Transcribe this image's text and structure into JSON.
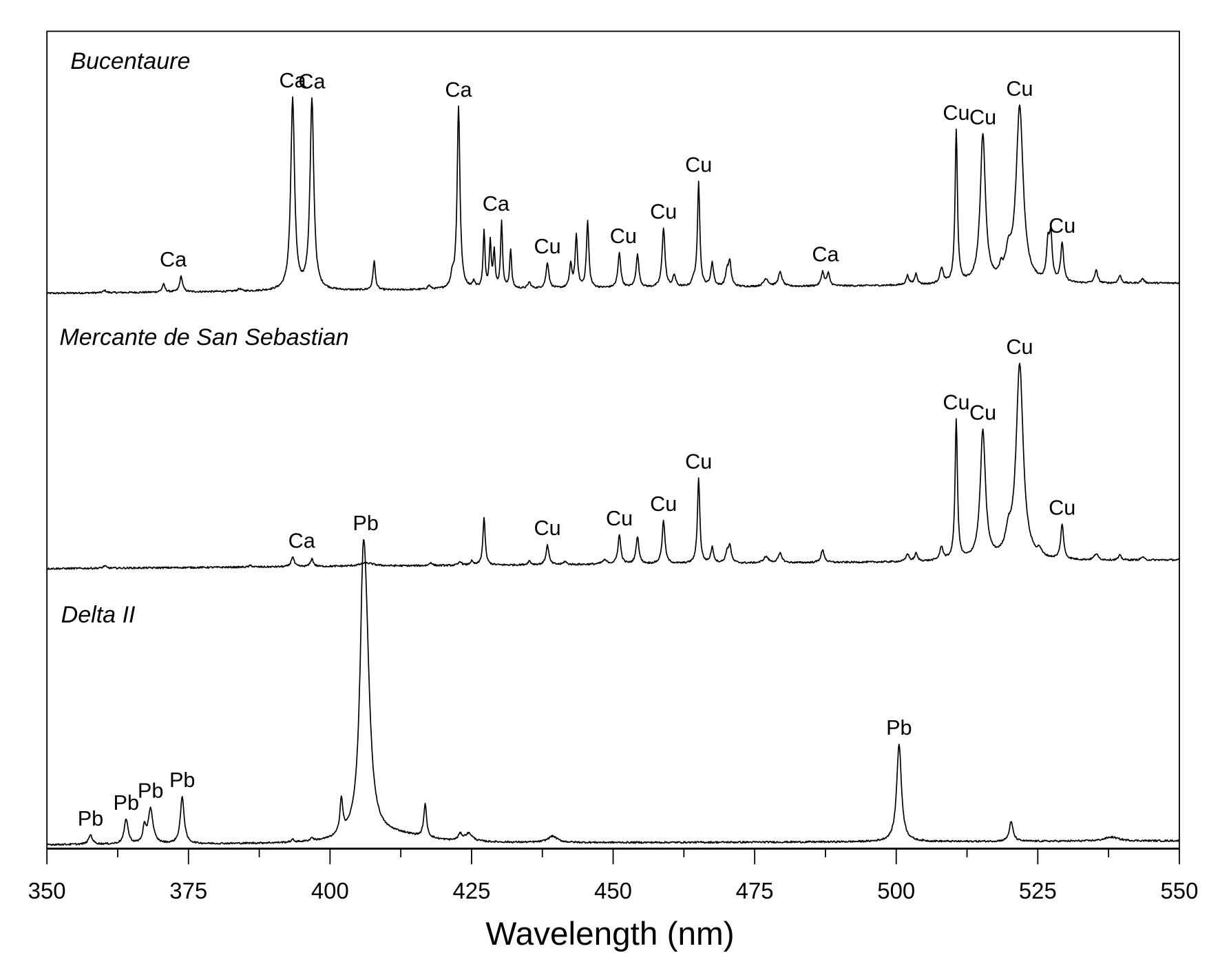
{
  "chart_data": {
    "type": "line",
    "title": "",
    "xlabel": "Wavelength (nm)",
    "ylabel": "",
    "xlim": [
      350,
      550
    ],
    "ylim": [
      0,
      1045
    ],
    "x_ticks": [
      350,
      375,
      400,
      425,
      450,
      475,
      500,
      525,
      550
    ],
    "y_ticks_shown": false,
    "grid": false,
    "legend": "none",
    "series": [
      {
        "name": "Bucentaure",
        "baseline": [
          710,
          723
        ],
        "peaks": [
          [
            360.2,
            3,
            0.3
          ],
          [
            370.6,
            10,
            0.3
          ],
          [
            373.7,
            20,
            0.3
          ],
          [
            384,
            3,
            0.4
          ],
          [
            393.4,
            245,
            0.4
          ],
          [
            396.8,
            243,
            0.4
          ],
          [
            407.8,
            37,
            0.25
          ],
          [
            417.5,
            5,
            0.3
          ],
          [
            421.6,
            15,
            0.3
          ],
          [
            422.7,
            233,
            0.3
          ],
          [
            425.4,
            8,
            0.3
          ],
          [
            427.2,
            72,
            0.2
          ],
          [
            428.3,
            60,
            0.2
          ],
          [
            429.0,
            45,
            0.2
          ],
          [
            430.3,
            86,
            0.2
          ],
          [
            431.9,
            50,
            0.2
          ],
          [
            435.2,
            8,
            0.3
          ],
          [
            438.4,
            33,
            0.3
          ],
          [
            442.5,
            30,
            0.25
          ],
          [
            443.5,
            66,
            0.25
          ],
          [
            445.5,
            85,
            0.25
          ],
          [
            451.1,
            44,
            0.3
          ],
          [
            454.3,
            42,
            0.3
          ],
          [
            458.9,
            76,
            0.3
          ],
          [
            460.8,
            15,
            0.3
          ],
          [
            464.2,
            8,
            0.3
          ],
          [
            465.1,
            135,
            0.25
          ],
          [
            467.5,
            30,
            0.3
          ],
          [
            470.1,
            18,
            0.3
          ],
          [
            470.6,
            30,
            0.3
          ],
          [
            477,
            10,
            0.5
          ],
          [
            479.5,
            18,
            0.4
          ],
          [
            487.0,
            18,
            0.3
          ],
          [
            488.0,
            16,
            0.3
          ],
          [
            502.0,
            12,
            0.3
          ],
          [
            503.5,
            14,
            0.3
          ],
          [
            508.0,
            20,
            0.35
          ],
          [
            510.6,
            195,
            0.25
          ],
          [
            515.3,
            190,
            0.55
          ],
          [
            518.5,
            12,
            0.3
          ],
          [
            519.8,
            30,
            0.6
          ],
          [
            521.8,
            225,
            0.75
          ],
          [
            526.8,
            45,
            0.3
          ],
          [
            527.3,
            55,
            0.3
          ],
          [
            529.3,
            50,
            0.3
          ],
          [
            535.3,
            17,
            0.3
          ],
          [
            539.5,
            10,
            0.3
          ],
          [
            543.5,
            6,
            0.3
          ]
        ],
        "annotations": [
          {
            "text": "Ca",
            "x": 372.3
          },
          {
            "text": "Ca",
            "x": 393.4
          },
          {
            "text": "Ca",
            "x": 396.8
          },
          {
            "text": "Ca",
            "x": 422.7
          },
          {
            "text": "Ca",
            "x": 429.3
          },
          {
            "text": "Cu",
            "x": 438.4
          },
          {
            "text": "Cu",
            "x": 451.8
          },
          {
            "text": "Cu",
            "x": 458.9
          },
          {
            "text": "Cu",
            "x": 465.1
          },
          {
            "text": "Ca",
            "x": 487.5
          },
          {
            "text": "Cu",
            "x": 510.6
          },
          {
            "text": "Cu",
            "x": 515.3
          },
          {
            "text": "Cu",
            "x": 521.8
          },
          {
            "text": "Cu",
            "x": 529.3
          }
        ]
      },
      {
        "name": "Mercante de San Sebastian",
        "baseline": [
          358,
          369
        ],
        "peaks": [
          [
            360.2,
            3,
            0.3
          ],
          [
            386,
            2,
            0.3
          ],
          [
            393.4,
            13,
            0.3
          ],
          [
            396.8,
            10,
            0.3
          ],
          [
            406.5,
            4,
            1.5
          ],
          [
            417.8,
            4,
            0.3
          ],
          [
            423,
            5,
            0.3
          ],
          [
            425,
            5,
            0.3
          ],
          [
            427.2,
            60,
            0.25
          ],
          [
            435.2,
            5,
            0.3
          ],
          [
            438.4,
            25,
            0.3
          ],
          [
            441.5,
            4,
            0.3
          ],
          [
            448.5,
            5,
            0.5
          ],
          [
            451.1,
            37,
            0.3
          ],
          [
            454.3,
            35,
            0.3
          ],
          [
            458.9,
            55,
            0.3
          ],
          [
            465.1,
            110,
            0.25
          ],
          [
            467.5,
            20,
            0.3
          ],
          [
            470.1,
            12,
            0.3
          ],
          [
            470.6,
            22,
            0.3
          ],
          [
            477,
            8,
            0.5
          ],
          [
            479.5,
            12,
            0.4
          ],
          [
            487.0,
            16,
            0.35
          ],
          [
            502.0,
            10,
            0.3
          ],
          [
            503.5,
            10,
            0.3
          ],
          [
            508.0,
            17,
            0.35
          ],
          [
            510.6,
            180,
            0.25
          ],
          [
            515.3,
            165,
            0.55
          ],
          [
            519.8,
            25,
            0.6
          ],
          [
            521.8,
            250,
            0.75
          ],
          [
            525.3,
            8,
            0.4
          ],
          [
            529.3,
            45,
            0.3
          ],
          [
            535.3,
            8,
            0.4
          ],
          [
            539.5,
            6,
            0.3
          ],
          [
            543.5,
            4,
            0.3
          ]
        ],
        "annotations": [
          {
            "text": "Ca",
            "x": 395.0
          },
          {
            "text": "Cu",
            "x": 438.4
          },
          {
            "text": "Cu",
            "x": 451.1
          },
          {
            "text": "Cu",
            "x": 458.9
          },
          {
            "text": "Cu",
            "x": 465.1
          },
          {
            "text": "Cu",
            "x": 510.6
          },
          {
            "text": "Cu",
            "x": 515.3
          },
          {
            "text": "Cu",
            "x": 521.8
          },
          {
            "text": "Cu",
            "x": 529.3
          }
        ]
      },
      {
        "name": "Delta II",
        "baseline": [
          5,
          10
        ],
        "peaks": [
          [
            357.7,
            12,
            0.4
          ],
          [
            364.0,
            32,
            0.4
          ],
          [
            367.2,
            20,
            0.3
          ],
          [
            368.3,
            45,
            0.5
          ],
          [
            373.9,
            60,
            0.4
          ],
          [
            393.4,
            3,
            0.3
          ],
          [
            396.8,
            4,
            0.3
          ],
          [
            402.0,
            45,
            0.3
          ],
          [
            405.8,
            200,
            0.6
          ],
          [
            406.3,
            225,
            0.9
          ],
          [
            412,
            10,
            6
          ],
          [
            416.8,
            42,
            0.3
          ],
          [
            423.0,
            8,
            0.4
          ],
          [
            424.5,
            10,
            0.8
          ],
          [
            439.3,
            8,
            1.0
          ],
          [
            500.5,
            125,
            0.5
          ],
          [
            520.3,
            25,
            0.4
          ],
          [
            538.0,
            5,
            1.5
          ]
        ],
        "annotations": [
          {
            "text": "Pb",
            "x": 357.7
          },
          {
            "text": "Pb",
            "x": 364.0
          },
          {
            "text": "Pb",
            "x": 368.3
          },
          {
            "text": "Pb",
            "x": 373.9
          },
          {
            "text": "Pb",
            "x": 406.3
          },
          {
            "text": "Pb",
            "x": 500.5
          }
        ]
      }
    ]
  },
  "series_labels": [
    "Bucentaure",
    "Mercante de San Sebastian",
    "Delta II"
  ],
  "colors": {
    "line": "#000000",
    "axis": "#000000"
  }
}
